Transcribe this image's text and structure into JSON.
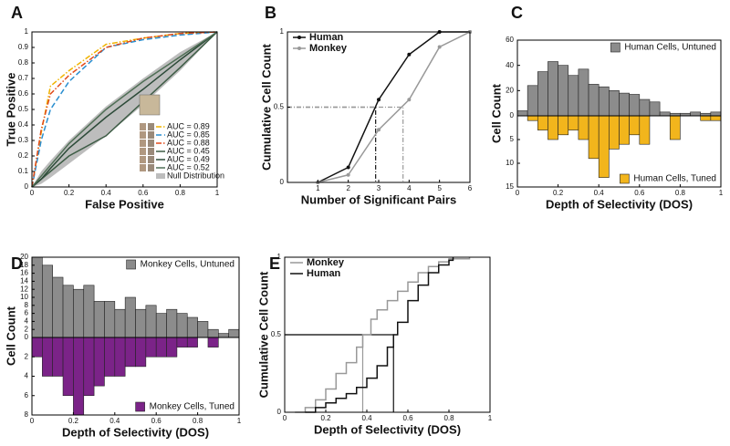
{
  "chart_data": [
    {
      "type": "line",
      "panel": "A",
      "x_label": "False Positive",
      "y_label": "True Positive",
      "xlim": [
        0,
        1
      ],
      "ylim": [
        0,
        1
      ],
      "xticks": [
        0,
        0.2,
        0.4,
        0.6,
        0.8,
        1
      ],
      "yticks": [
        0,
        0.1,
        0.2,
        0.3,
        0.4,
        0.5,
        0.6,
        0.7,
        0.8,
        0.9,
        1
      ],
      "legend_loc": "lower right",
      "x": [
        0,
        0.05,
        0.1,
        0.2,
        0.4,
        0.6,
        0.8,
        1
      ],
      "band": {
        "name": "Null Distribution",
        "color": "#bdbdbd",
        "low": [
          0,
          0.02,
          0.06,
          0.15,
          0.33,
          0.53,
          0.75,
          1
        ],
        "high": [
          0,
          0.1,
          0.17,
          0.3,
          0.52,
          0.7,
          0.87,
          1
        ]
      },
      "series": [
        {
          "name": "AUC = 0.89",
          "color": "#f0b400",
          "dash": "dashdot",
          "values": [
            0,
            0.35,
            0.65,
            0.75,
            0.92,
            0.96,
            0.99,
            1
          ]
        },
        {
          "name": "AUC = 0.85",
          "color": "#2a8fd0",
          "dash": "dashed",
          "values": [
            0,
            0.3,
            0.5,
            0.68,
            0.9,
            0.95,
            0.98,
            1
          ]
        },
        {
          "name": "AUC = 0.88",
          "color": "#e04a1a",
          "dash": "dashdot",
          "values": [
            0,
            0.37,
            0.6,
            0.72,
            0.9,
            0.96,
            0.99,
            1
          ]
        },
        {
          "name": "AUC = 0.45",
          "color": "#3d5c45",
          "dash": "solid",
          "values": [
            0,
            0.05,
            0.1,
            0.2,
            0.33,
            0.55,
            0.77,
            1
          ]
        },
        {
          "name": "AUC = 0.49",
          "color": "#2c4a38",
          "dash": "solid",
          "values": [
            0,
            0.05,
            0.12,
            0.25,
            0.45,
            0.63,
            0.82,
            1
          ]
        },
        {
          "name": "AUC = 0.52",
          "color": "#4f6e55",
          "dash": "solid",
          "values": [
            0,
            0.07,
            0.14,
            0.28,
            0.5,
            0.68,
            0.84,
            1
          ]
        }
      ]
    },
    {
      "type": "line",
      "panel": "B",
      "x_label": "Number of Significant Pairs",
      "y_label": "Cumulative Cell Count",
      "xlim": [
        0,
        6
      ],
      "ylim": [
        0,
        1
      ],
      "xticks": [
        1,
        2,
        3,
        4,
        5,
        6
      ],
      "yticks": [
        0,
        0.5,
        1
      ],
      "markers": true,
      "legend_loc": "upper left",
      "x": [
        1,
        2,
        3,
        4,
        5,
        6
      ],
      "series": [
        {
          "name": "Human",
          "color": "#111111",
          "dash": "solid",
          "values": [
            0,
            0.1,
            0.55,
            0.85,
            1,
            1
          ]
        },
        {
          "name": "Monkey",
          "color": "#999999",
          "dash": "solid",
          "values": [
            0,
            0.05,
            0.35,
            0.55,
            0.9,
            1
          ]
        }
      ],
      "crosshairs": [
        {
          "x": 2.9,
          "y": 0.5,
          "color": "#111111"
        },
        {
          "x": 3.8,
          "y": 0.5,
          "color": "#999999"
        }
      ]
    },
    {
      "type": "histogram",
      "panel": "C",
      "x_label": "Depth of Selectivity (DOS)",
      "y_label": "Cell Count",
      "xlim": [
        0,
        1
      ],
      "xticks": [
        0,
        0.2,
        0.4,
        0.6,
        0.8,
        1
      ],
      "ylim": [
        0,
        60
      ],
      "yticks": [
        0,
        20,
        40,
        60
      ],
      "y2lim": [
        0,
        15
      ],
      "y2ticks": [
        5,
        10,
        15
      ],
      "bins": [
        0,
        0.05,
        0.1,
        0.15,
        0.2,
        0.25,
        0.3,
        0.35,
        0.4,
        0.45,
        0.5,
        0.55,
        0.6,
        0.65,
        0.7,
        0.75,
        0.8,
        0.85,
        0.9,
        0.95,
        1
      ],
      "series": [
        {
          "name": "Human Cells, Untuned",
          "color": "#8c8c8c",
          "legend_loc": "upper right",
          "values": [
            4,
            24,
            35,
            43,
            40,
            32,
            37,
            25,
            23,
            20,
            18,
            17,
            13,
            11,
            3,
            2,
            2,
            3,
            2,
            3
          ]
        },
        {
          "name": "Human Cells, Tuned",
          "color": "#f2b51c",
          "axis": "y2",
          "legend_loc": "lower right",
          "values": [
            0,
            1,
            3,
            5,
            4,
            3,
            5,
            9,
            13,
            7,
            6,
            4,
            6,
            0,
            0,
            5,
            0,
            0,
            1,
            1
          ]
        }
      ]
    },
    {
      "type": "histogram",
      "panel": "D",
      "x_label": "Depth of Selectivity (DOS)",
      "y_label": "Cell Count",
      "xlim": [
        0,
        1
      ],
      "xticks": [
        0,
        0.2,
        0.4,
        0.6,
        0.8,
        1
      ],
      "ylim": [
        0,
        20
      ],
      "yticks": [
        0,
        2,
        4,
        6,
        8,
        10,
        12,
        14,
        16,
        18,
        20
      ],
      "y2lim": [
        0,
        8
      ],
      "y2ticks": [
        2,
        4,
        6,
        8
      ],
      "bins": [
        0,
        0.05,
        0.1,
        0.15,
        0.2,
        0.25,
        0.3,
        0.35,
        0.4,
        0.45,
        0.5,
        0.55,
        0.6,
        0.65,
        0.7,
        0.75,
        0.8,
        0.85,
        0.9,
        0.95,
        1
      ],
      "series": [
        {
          "name": "Monkey Cells, Untuned",
          "color": "#8c8c8c",
          "legend_loc": "upper right",
          "values": [
            20,
            18,
            15,
            13,
            12,
            13,
            9,
            9,
            7,
            10,
            7,
            8,
            6,
            7,
            6,
            5,
            4,
            2,
            1,
            2
          ]
        },
        {
          "name": "Monkey Cells, Tuned",
          "color": "#7b2388",
          "axis": "y2",
          "legend_loc": "lower right",
          "values": [
            2,
            4,
            4,
            6,
            8,
            6,
            5,
            4,
            4,
            3,
            3,
            2,
            2,
            2,
            1,
            1,
            0,
            1,
            0,
            0
          ]
        }
      ]
    },
    {
      "type": "line",
      "panel": "E",
      "x_label": "Depth of Selectivity (DOS)",
      "y_label": "Cumulative Cell Count",
      "xlim": [
        0,
        1
      ],
      "ylim": [
        0,
        1
      ],
      "xticks": [
        0,
        0.2,
        0.4,
        0.6,
        0.8,
        1
      ],
      "yticks": [
        0,
        0.5,
        1
      ],
      "step": true,
      "legend_loc": "upper left",
      "series": [
        {
          "name": "Monkey",
          "color": "#999999",
          "dash": "solid",
          "x": [
            0.05,
            0.1,
            0.15,
            0.2,
            0.25,
            0.3,
            0.35,
            0.38,
            0.42,
            0.45,
            0.5,
            0.55,
            0.6,
            0.65,
            0.7,
            0.75,
            0.8,
            0.9
          ],
          "values": [
            0,
            0.03,
            0.08,
            0.15,
            0.25,
            0.32,
            0.42,
            0.5,
            0.6,
            0.66,
            0.72,
            0.78,
            0.84,
            0.9,
            0.94,
            0.97,
            0.99,
            1
          ]
        },
        {
          "name": "Human",
          "color": "#111111",
          "dash": "solid",
          "x": [
            0.1,
            0.15,
            0.2,
            0.25,
            0.3,
            0.35,
            0.4,
            0.45,
            0.5,
            0.53,
            0.55,
            0.6,
            0.65,
            0.7,
            0.75,
            0.8,
            0.82
          ],
          "values": [
            0,
            0.03,
            0.06,
            0.09,
            0.12,
            0.16,
            0.22,
            0.3,
            0.42,
            0.5,
            0.58,
            0.72,
            0.82,
            0.9,
            0.95,
            0.98,
            1
          ]
        }
      ],
      "crosshairs": [
        {
          "x": 0.38,
          "y": 0.5,
          "color": "#999999"
        },
        {
          "x": 0.53,
          "y": 0.5,
          "color": "#111111"
        }
      ]
    }
  ]
}
